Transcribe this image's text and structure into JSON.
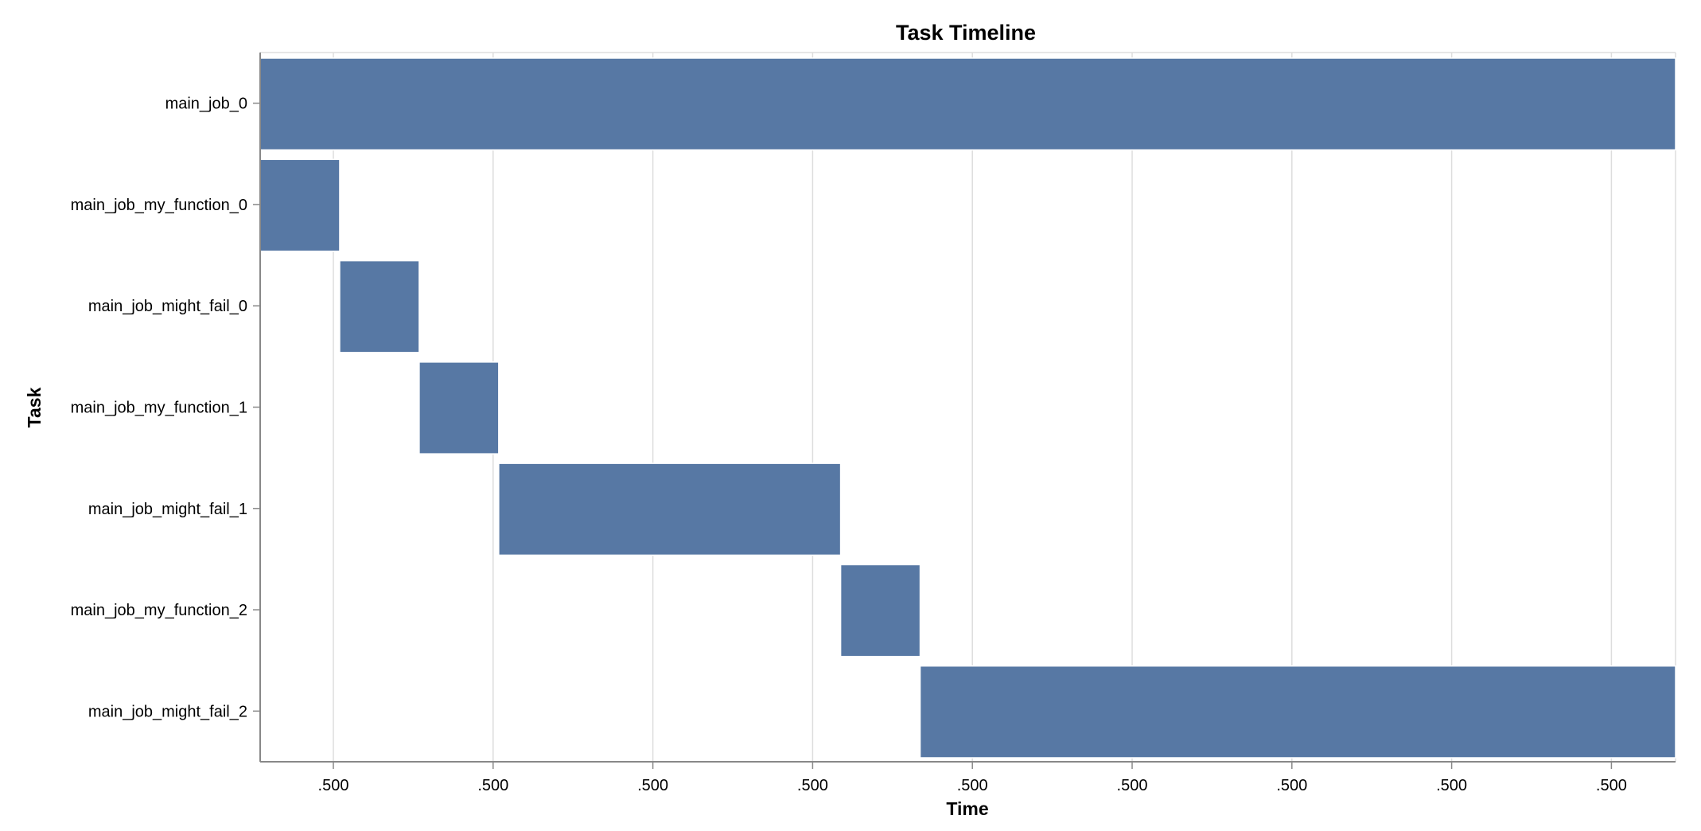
{
  "chart_data": {
    "type": "bar",
    "orientation": "horizontal-gantt",
    "title": "Task Timeline",
    "xlabel": "Time",
    "ylabel": "Task",
    "grid": "vertical",
    "x_tick_labels": [
      ".500",
      ".500",
      ".500",
      ".500",
      ".500",
      ".500",
      ".500",
      ".500",
      ".500"
    ],
    "xlim": [
      0,
      8.9
    ],
    "tasks": [
      {
        "label": "main_job_0",
        "start": 0.0,
        "end": 8.9
      },
      {
        "label": "main_job_my_function_0",
        "start": 0.0,
        "end": 0.5
      },
      {
        "label": "main_job_might_fail_0",
        "start": 0.5,
        "end": 1.0
      },
      {
        "label": "main_job_my_function_1",
        "start": 1.0,
        "end": 1.5
      },
      {
        "label": "main_job_might_fail_1",
        "start": 1.5,
        "end": 3.65
      },
      {
        "label": "main_job_my_function_2",
        "start": 3.65,
        "end": 4.15
      },
      {
        "label": "main_job_might_fail_2",
        "start": 4.15,
        "end": 8.9
      }
    ],
    "colors": {
      "bar": "#5778a4",
      "bar_stroke": "#ffffff",
      "grid": "#dddddd",
      "axis": "#888888"
    }
  }
}
